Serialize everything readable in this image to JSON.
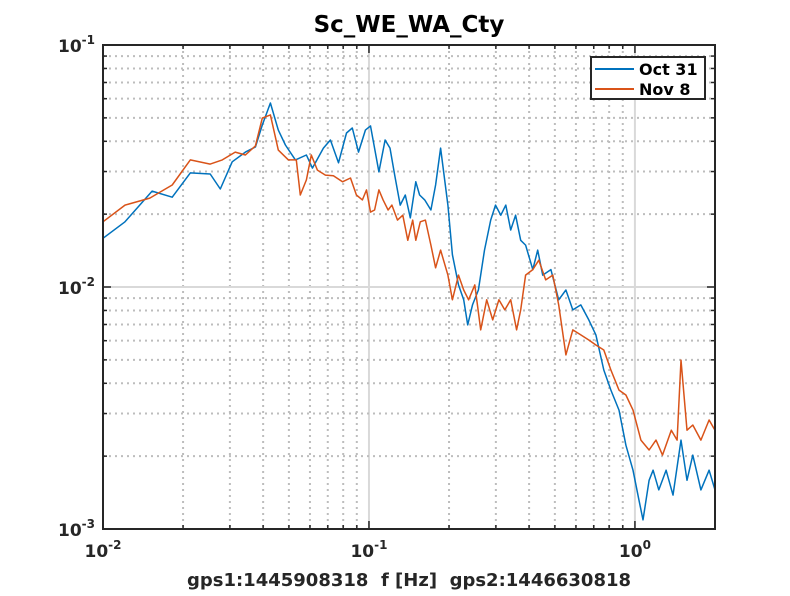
{
  "chart_data": {
    "type": "line",
    "title": "Sc_WE_WA_Cty",
    "xlabel": "gps1:1445908318  f [Hz]  gps2:1446630818",
    "ylabel": "",
    "xscale": "log",
    "yscale": "log",
    "xlim": [
      0.01,
      2
    ],
    "ylim": [
      0.001,
      0.1
    ],
    "grid": true,
    "legend_position": "top-right",
    "x_ticks": [
      {
        "base": "10",
        "exp": "-2",
        "value": 0.01
      },
      {
        "base": "10",
        "exp": "-1",
        "value": 0.1
      },
      {
        "base": "10",
        "exp": "0",
        "value": 1
      }
    ],
    "y_ticks": [
      {
        "base": "10",
        "exp": "-3",
        "value": 0.001
      },
      {
        "base": "10",
        "exp": "-2",
        "value": 0.01
      },
      {
        "base": "10",
        "exp": "-1",
        "value": 0.1
      }
    ],
    "series": [
      {
        "name": "Oct 31",
        "color": "#0072BD",
        "points": [
          [
            0.01,
            0.0159
          ],
          [
            0.0121,
            0.0186
          ],
          [
            0.0153,
            0.0249
          ],
          [
            0.0182,
            0.0235
          ],
          [
            0.0213,
            0.0296
          ],
          [
            0.0253,
            0.0293
          ],
          [
            0.0276,
            0.0254
          ],
          [
            0.0306,
            0.0329
          ],
          [
            0.0343,
            0.0361
          ],
          [
            0.0374,
            0.0379
          ],
          [
            0.0397,
            0.0467
          ],
          [
            0.0426,
            0.0576
          ],
          [
            0.0456,
            0.0445
          ],
          [
            0.0485,
            0.0386
          ],
          [
            0.0529,
            0.0335
          ],
          [
            0.0582,
            0.0351
          ],
          [
            0.0613,
            0.031
          ],
          [
            0.0674,
            0.0375
          ],
          [
            0.0716,
            0.0405
          ],
          [
            0.0768,
            0.0326
          ],
          [
            0.0823,
            0.0433
          ],
          [
            0.0866,
            0.0454
          ],
          [
            0.0913,
            0.0361
          ],
          [
            0.097,
            0.0445
          ],
          [
            0.1013,
            0.0463
          ],
          [
            0.109,
            0.0299
          ],
          [
            0.115,
            0.0405
          ],
          [
            0.12,
            0.0375
          ],
          [
            0.125,
            0.029
          ],
          [
            0.131,
            0.0218
          ],
          [
            0.137,
            0.024
          ],
          [
            0.143,
            0.0193
          ],
          [
            0.15,
            0.0272
          ],
          [
            0.155,
            0.024
          ],
          [
            0.162,
            0.0229
          ],
          [
            0.171,
            0.0208
          ],
          [
            0.178,
            0.0264
          ],
          [
            0.186,
            0.0375
          ],
          [
            0.198,
            0.0218
          ],
          [
            0.206,
            0.0136
          ],
          [
            0.217,
            0.0102
          ],
          [
            0.227,
            0.00885
          ],
          [
            0.235,
            0.00697
          ],
          [
            0.245,
            0.00843
          ],
          [
            0.258,
            0.00972
          ],
          [
            0.272,
            0.0142
          ],
          [
            0.287,
            0.0189
          ],
          [
            0.299,
            0.0218
          ],
          [
            0.313,
            0.0198
          ],
          [
            0.327,
            0.0218
          ],
          [
            0.341,
            0.0172
          ],
          [
            0.356,
            0.0198
          ],
          [
            0.372,
            0.0156
          ],
          [
            0.388,
            0.0149
          ],
          [
            0.413,
            0.0118
          ],
          [
            0.431,
            0.0142
          ],
          [
            0.45,
            0.0112
          ],
          [
            0.483,
            0.0118
          ],
          [
            0.517,
            0.00885
          ],
          [
            0.55,
            0.00972
          ],
          [
            0.584,
            0.00804
          ],
          [
            0.626,
            0.00843
          ],
          [
            0.671,
            0.00731
          ],
          [
            0.713,
            0.00634
          ],
          [
            0.764,
            0.00454
          ],
          [
            0.812,
            0.00375
          ],
          [
            0.871,
            0.0031
          ],
          [
            0.925,
            0.00222
          ],
          [
            0.983,
            0.00175
          ],
          [
            1.035,
            0.00132
          ],
          [
            1.072,
            0.00109
          ],
          [
            1.13,
            0.00159
          ],
          [
            1.17,
            0.00175
          ],
          [
            1.23,
            0.00145
          ],
          [
            1.31,
            0.00175
          ],
          [
            1.39,
            0.00138
          ],
          [
            1.49,
            0.00233
          ],
          [
            1.57,
            0.00159
          ],
          [
            1.65,
            0.00202
          ],
          [
            1.77,
            0.00145
          ],
          [
            1.9,
            0.00175
          ],
          [
            2.0,
            0.00145
          ]
        ]
      },
      {
        "name": "Nov 8",
        "color": "#D95319",
        "points": [
          [
            0.01,
            0.0186
          ],
          [
            0.0121,
            0.0218
          ],
          [
            0.015,
            0.0233
          ],
          [
            0.0182,
            0.0264
          ],
          [
            0.0213,
            0.0335
          ],
          [
            0.0253,
            0.0322
          ],
          [
            0.0281,
            0.0335
          ],
          [
            0.0314,
            0.0361
          ],
          [
            0.0343,
            0.0351
          ],
          [
            0.0374,
            0.0383
          ],
          [
            0.0397,
            0.0499
          ],
          [
            0.0426,
            0.0514
          ],
          [
            0.0456,
            0.0368
          ],
          [
            0.0498,
            0.0335
          ],
          [
            0.0533,
            0.0335
          ],
          [
            0.0552,
            0.024
          ],
          [
            0.0582,
            0.0277
          ],
          [
            0.0607,
            0.0351
          ],
          [
            0.064,
            0.0304
          ],
          [
            0.0686,
            0.029
          ],
          [
            0.0735,
            0.0288
          ],
          [
            0.0795,
            0.0272
          ],
          [
            0.0852,
            0.0282
          ],
          [
            0.0897,
            0.024
          ],
          [
            0.0945,
            0.0229
          ],
          [
            0.0979,
            0.0252
          ],
          [
            0.1013,
            0.0204
          ],
          [
            0.105,
            0.0208
          ],
          [
            0.109,
            0.0252
          ],
          [
            0.113,
            0.0229
          ],
          [
            0.118,
            0.0208
          ],
          [
            0.122,
            0.0218
          ],
          [
            0.128,
            0.0189
          ],
          [
            0.134,
            0.0198
          ],
          [
            0.14,
            0.0156
          ],
          [
            0.146,
            0.0189
          ],
          [
            0.15,
            0.0156
          ],
          [
            0.156,
            0.0186
          ],
          [
            0.163,
            0.0189
          ],
          [
            0.171,
            0.0149
          ],
          [
            0.178,
            0.012
          ],
          [
            0.186,
            0.0142
          ],
          [
            0.198,
            0.0112
          ],
          [
            0.206,
            0.00885
          ],
          [
            0.217,
            0.0112
          ],
          [
            0.227,
            0.00972
          ],
          [
            0.237,
            0.00885
          ],
          [
            0.25,
            0.0102
          ],
          [
            0.263,
            0.00665
          ],
          [
            0.277,
            0.00885
          ],
          [
            0.292,
            0.00731
          ],
          [
            0.308,
            0.00885
          ],
          [
            0.324,
            0.00804
          ],
          [
            0.341,
            0.00885
          ],
          [
            0.359,
            0.00665
          ],
          [
            0.372,
            0.00804
          ],
          [
            0.388,
            0.0112
          ],
          [
            0.413,
            0.0118
          ],
          [
            0.435,
            0.0129
          ],
          [
            0.462,
            0.0107
          ],
          [
            0.491,
            0.0112
          ],
          [
            0.517,
            0.00843
          ],
          [
            0.55,
            0.00524
          ],
          [
            0.584,
            0.00665
          ],
          [
            0.626,
            0.00634
          ],
          [
            0.671,
            0.00604
          ],
          [
            0.713,
            0.00576
          ],
          [
            0.764,
            0.00549
          ],
          [
            0.812,
            0.00454
          ],
          [
            0.871,
            0.00375
          ],
          [
            0.925,
            0.00358
          ],
          [
            0.983,
            0.0031
          ],
          [
            1.053,
            0.00233
          ],
          [
            1.13,
            0.00212
          ],
          [
            1.2,
            0.00233
          ],
          [
            1.27,
            0.00202
          ],
          [
            1.37,
            0.00256
          ],
          [
            1.44,
            0.00233
          ],
          [
            1.49,
            0.00499
          ],
          [
            1.57,
            0.00256
          ],
          [
            1.65,
            0.00269
          ],
          [
            1.77,
            0.00233
          ],
          [
            1.9,
            0.00282
          ],
          [
            2.0,
            0.00256
          ]
        ]
      }
    ]
  }
}
